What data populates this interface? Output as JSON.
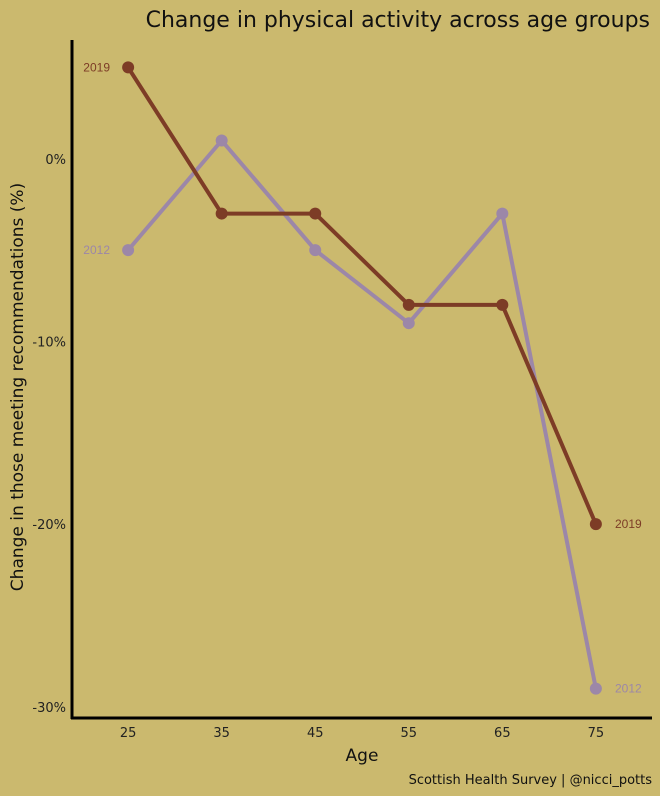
{
  "chart_data": {
    "type": "line",
    "title": "Change in physical activity across age groups",
    "xlabel": "Age",
    "ylabel": "Change in those meeting recommendations (%)",
    "caption": "Scottish Health Survey | @nicci_potts",
    "x": [
      25,
      35,
      45,
      55,
      65,
      75
    ],
    "xticks": [
      "25",
      "35",
      "45",
      "55",
      "65",
      "75"
    ],
    "yticks": [
      {
        "value": 0,
        "label": "0%"
      },
      {
        "value": -10,
        "label": "-10%"
      },
      {
        "value": -20,
        "label": "-20%"
      },
      {
        "value": -30,
        "label": "-30%"
      }
    ],
    "ylim": [
      -30.5,
      6.5
    ],
    "xlim": [
      19,
      81
    ],
    "grid": false,
    "legend": "direct labels at line ends",
    "series": [
      {
        "name": "2012",
        "color": "#9c87a8",
        "values": [
          -5,
          1,
          -5,
          -9,
          -3,
          -29
        ]
      },
      {
        "name": "2019",
        "color": "#7d3c26",
        "values": [
          5,
          -3,
          -3,
          -8,
          -8,
          -20
        ]
      }
    ]
  }
}
